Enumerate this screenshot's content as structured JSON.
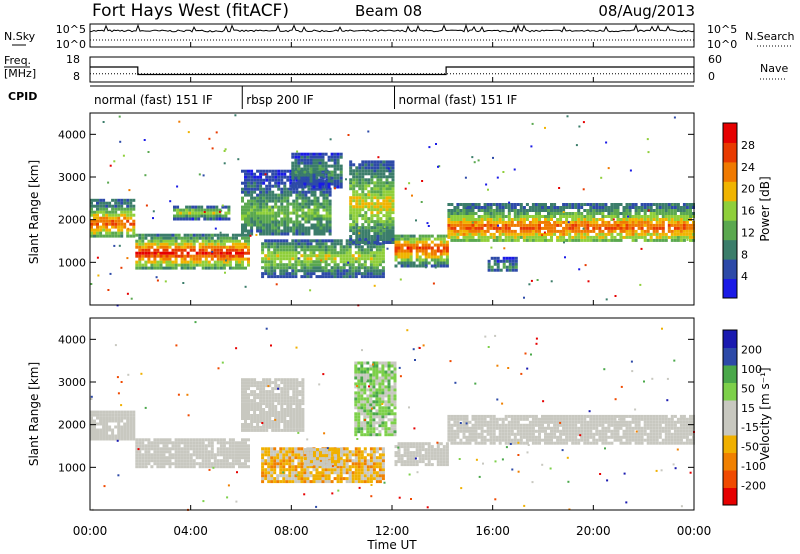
{
  "header": {
    "title": "Fort Hays West (fitACF)",
    "beam": "Beam 08",
    "date": "08/Aug/2013"
  },
  "colors": {
    "power_scale": [
      "#1a1ae6",
      "#2d4aa8",
      "#3b7d6a",
      "#5aa84f",
      "#8fcf3a",
      "#f0b400",
      "#f07a00",
      "#e83a00",
      "#e60000"
    ],
    "velocity_scale": [
      "#e60000",
      "#f04a00",
      "#f08000",
      "#f0b000",
      "#c8c8c0",
      "#c8c8c0",
      "#7dd04a",
      "#4aa84a",
      "#2d4aa8",
      "#1a1ab0"
    ],
    "ground_scatter": "#c8c8c0"
  },
  "chart_data": [
    {
      "type": "line",
      "panel": "noise",
      "series": [
        {
          "name": "N.Sky",
          "style": "solid"
        },
        {
          "name": "N.Search",
          "style": "dotted"
        }
      ],
      "left_ticks": [
        "10^5",
        "10^0"
      ],
      "right_ticks": [
        "10^5",
        "10^0"
      ],
      "noise_level": 0.7
    },
    {
      "type": "line",
      "panel": "frequency",
      "series": [
        {
          "name": "Freq. [MHz]",
          "style": "solid",
          "axis": "left",
          "points": [
            [
              0,
              14
            ],
            [
              1.9,
              14
            ],
            [
              1.9,
              11
            ],
            [
              14.15,
              11
            ],
            [
              14.15,
              14
            ],
            [
              24,
              14
            ]
          ]
        },
        {
          "name": "Nave",
          "style": "dotted",
          "axis": "right",
          "points": [
            [
              0,
              20
            ],
            [
              24,
              20
            ]
          ]
        }
      ],
      "left_axis_label_top": "Freq.",
      "left_axis_label_bottom": "[MHz]",
      "left_ticks": [
        "18",
        "8"
      ],
      "right_ticks": [
        "60",
        "0"
      ]
    },
    {
      "type": "table",
      "panel": "cpid",
      "label": "CPID",
      "segments": [
        {
          "start": 0,
          "end": 6.05,
          "label": "normal (fast) 151 IF"
        },
        {
          "start": 6.05,
          "end": 12.1,
          "label": "rbsp 200 IF"
        },
        {
          "start": 12.1,
          "end": 24,
          "label": "normal (fast) 151 IF"
        }
      ]
    },
    {
      "type": "heatmap",
      "panel": "power",
      "ylabel": "Slant Range [km]",
      "yticks": [
        "1000",
        "2000",
        "3000",
        "4000"
      ],
      "ylim": [
        0,
        4500
      ],
      "colorbar_label": "Power [dB]",
      "colorbar_ticks": [
        "4",
        "8",
        "12",
        "16",
        "20",
        "24",
        "28"
      ],
      "bands": [
        {
          "t0": 0,
          "t1": 1.8,
          "r0": 1650,
          "r1": 2500,
          "peak_range": 1950,
          "level": 0.8
        },
        {
          "t0": 1.8,
          "t1": 6.3,
          "r0": 900,
          "r1": 1700,
          "peak_range": 1250,
          "level": 0.9
        },
        {
          "t0": 3.3,
          "t1": 5.5,
          "r0": 2050,
          "r1": 2350,
          "peak_range": 2200,
          "level": 0.55
        },
        {
          "t0": 6.0,
          "t1": 9.5,
          "r0": 1700,
          "r1": 3200,
          "peak_range": 2200,
          "level": 0.45
        },
        {
          "t0": 6.8,
          "t1": 11.6,
          "r0": 700,
          "r1": 1600,
          "peak_range": 1150,
          "level": 0.55
        },
        {
          "t0": 8.0,
          "t1": 10.0,
          "r0": 2800,
          "r1": 3600,
          "peak_range": 3200,
          "level": 0.35
        },
        {
          "t0": 10.3,
          "t1": 12.0,
          "r0": 1500,
          "r1": 3400,
          "peak_range": 2400,
          "level": 0.6
        },
        {
          "t0": 12.1,
          "t1": 14.2,
          "r0": 950,
          "r1": 1700,
          "peak_range": 1350,
          "level": 0.85
        },
        {
          "t0": 14.2,
          "t1": 24,
          "r0": 1550,
          "r1": 2450,
          "peak_range": 1850,
          "level": 0.8
        },
        {
          "t0": 15.8,
          "t1": 17.0,
          "r0": 850,
          "r1": 1150,
          "peak_range": 950,
          "level": 0.35
        }
      ]
    },
    {
      "type": "heatmap",
      "panel": "velocity",
      "ylabel": "Slant Range [km]",
      "yticks": [
        "1000",
        "2000",
        "3000",
        "4000"
      ],
      "ylim": [
        0,
        4500
      ],
      "colorbar_label": "Velocity [m s⁻¹]",
      "colorbar_ticks": [
        "200",
        "100",
        "50",
        "15",
        "-15",
        "-50",
        "-100",
        "-200"
      ],
      "bands": [
        {
          "t0": 0,
          "t1": 1.8,
          "r0": 1700,
          "r1": 2350,
          "velocity": 0
        },
        {
          "t0": 1.8,
          "t1": 6.3,
          "r0": 1050,
          "r1": 1700,
          "velocity": 0
        },
        {
          "t0": 6.0,
          "t1": 8.5,
          "r0": 1900,
          "r1": 3100,
          "velocity": 0
        },
        {
          "t0": 6.8,
          "t1": 11.6,
          "r0": 700,
          "r1": 1500,
          "velocity": -60
        },
        {
          "t0": 8.5,
          "t1": 10.0,
          "r0": 1100,
          "r1": 1500,
          "velocity": -30
        },
        {
          "t0": 10.5,
          "t1": 12.1,
          "r0": 1800,
          "r1": 3500,
          "velocity": 60
        },
        {
          "t0": 12.1,
          "t1": 14.2,
          "r0": 1100,
          "r1": 1650,
          "velocity": 0
        },
        {
          "t0": 14.2,
          "t1": 24,
          "r0": 1600,
          "r1": 2300,
          "velocity": 0
        }
      ]
    }
  ],
  "xaxis": {
    "label": "Time UT",
    "ticks": [
      "00:00",
      "04:00",
      "08:00",
      "12:00",
      "16:00",
      "20:00",
      "00:00"
    ],
    "range_hours": [
      0,
      24
    ]
  }
}
